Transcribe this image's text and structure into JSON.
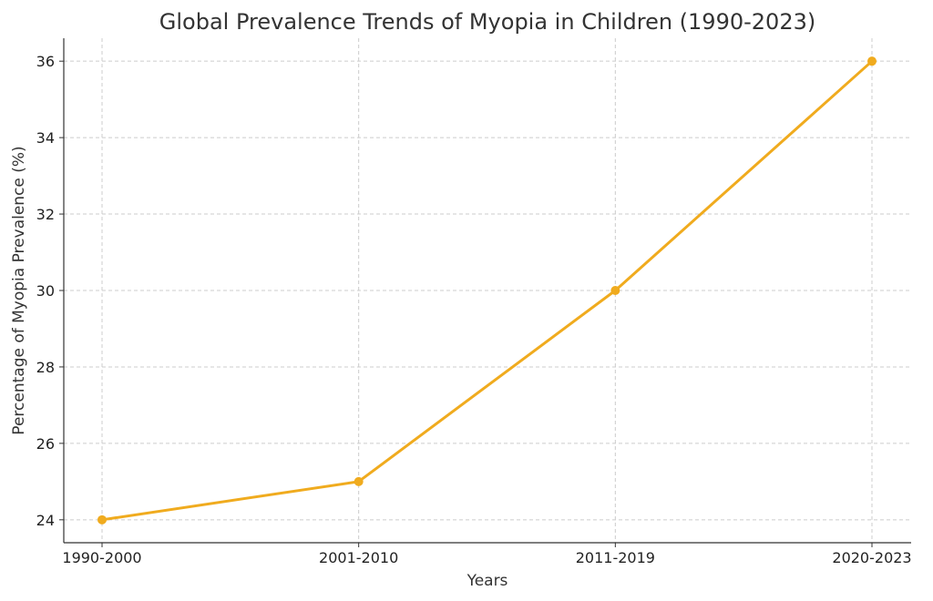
{
  "chart_data": {
    "type": "line",
    "title": "Global Prevalence Trends of Myopia in Children (1990-2023)",
    "xlabel": "Years",
    "ylabel": "Percentage of Myopia Prevalence (%)",
    "categories": [
      "1990-2000",
      "2001-2010",
      "2011-2019",
      "2020-2023"
    ],
    "series": [
      {
        "values": [
          24,
          25,
          30,
          36
        ],
        "color": "#f0ab1e"
      }
    ],
    "yticks": [
      24,
      26,
      28,
      30,
      32,
      34,
      36
    ],
    "ylim": [
      23.4,
      36.6
    ],
    "grid": true
  }
}
